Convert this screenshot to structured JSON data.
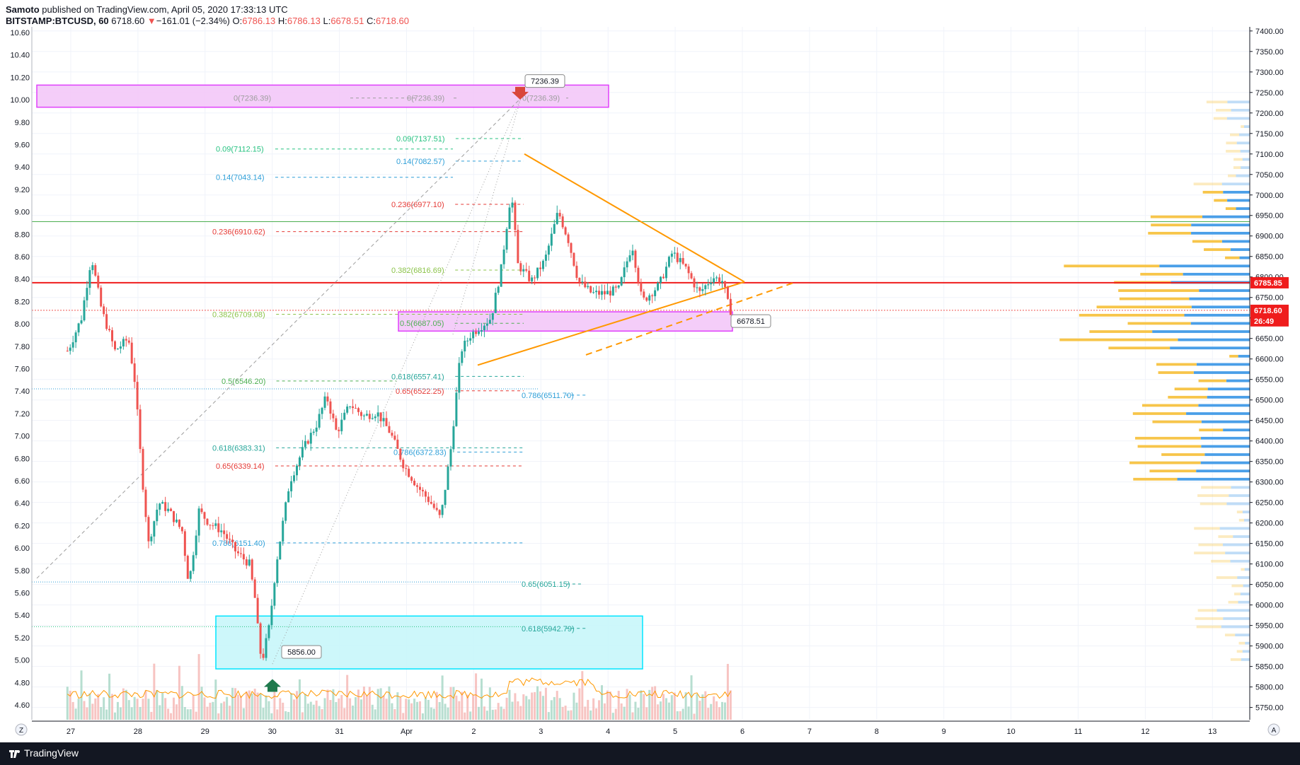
{
  "header": {
    "author": "Samoto",
    "published_text": "published on TradingView.com, April 05, 2020 17:33:13 UTC",
    "symbol": "BITSTAMP:BTCUSD, 60",
    "last": "6718.60",
    "change_arrow": "▼",
    "change": "−161.01 (−2.34%)",
    "o_label": "O:",
    "o_val": "6786.13",
    "h_label": "H:",
    "h_val": "6786.13",
    "l_label": "L:",
    "l_val": "6678.51",
    "c_label": "C:",
    "c_val": "6718.60"
  },
  "footer": {
    "brand": "TradingView"
  },
  "axis_buttons": {
    "left": "Z",
    "right": "A"
  },
  "colors": {
    "up": "#26a69a",
    "down": "#ef5350",
    "fib_green": "#4caf50",
    "fib_blue": "#2196f3",
    "fib_red": "#e53935",
    "fib_lime": "#8bc34a",
    "triangle": "#ff9800",
    "zone_pink": "#e040fb",
    "zone_cyan": "#00e5ff",
    "vp_yellow": "#f7c54a",
    "vp_blue": "#4a9fe8"
  },
  "chart_data": {
    "type": "candlestick",
    "x_ticks": [
      "27",
      "28",
      "29",
      "30",
      "31",
      "Apr",
      "2",
      "3",
      "4",
      "5",
      "6",
      "7",
      "8",
      "9",
      "10",
      "11",
      "12",
      "13"
    ],
    "right_axis_ticks": [
      "7400.00",
      "7350.00",
      "7300.00",
      "7250.00",
      "7200.00",
      "7150.00",
      "7100.00",
      "7050.00",
      "7000.00",
      "6950.00",
      "6900.00",
      "6850.00",
      "6800.00",
      "6750.00",
      "6700.00",
      "6650.00",
      "6600.00",
      "6550.00",
      "6500.00",
      "6450.00",
      "6400.00",
      "6350.00",
      "6300.00",
      "6250.00",
      "6200.00",
      "6150.00",
      "6100.00",
      "6050.00",
      "6000.00",
      "5950.00",
      "5900.00",
      "5850.00",
      "5800.00",
      "5750.00"
    ],
    "left_axis_ticks": [
      "10.60",
      "10.40",
      "10.20",
      "10.00",
      "9.80",
      "9.60",
      "9.40",
      "9.20",
      "9.00",
      "8.80",
      "8.60",
      "8.40",
      "8.20",
      "8.00",
      "7.80",
      "7.60",
      "7.40",
      "7.20",
      "7.00",
      "6.80",
      "6.60",
      "6.40",
      "6.20",
      "6.00",
      "5.80",
      "5.60",
      "5.40",
      "5.20",
      "5.00",
      "4.80",
      "4.60"
    ],
    "y_range": [
      5720,
      7410
    ],
    "price_labels": [
      {
        "text": "6785.85",
        "price": 6785.85,
        "color": "#ef1c1c"
      },
      {
        "text": "6718.60",
        "price": 6718.6,
        "color": "#ef1c1c"
      },
      {
        "text": "26:49",
        "price": 6693,
        "color": "#ef1c1c"
      }
    ],
    "callouts": [
      {
        "text": "7236.39",
        "price": 7236.39
      },
      {
        "text": "6678.51",
        "price": 6678.51
      },
      {
        "text": "5856.00",
        "price": 5856.0
      }
    ],
    "fib_levels": [
      {
        "text": "0(7236.39)",
        "price": 7236.39,
        "color": "#9e9e9e"
      },
      {
        "text": "0(7236.39)",
        "price": 7236.39,
        "color": "#9e9e9e"
      },
      {
        "text": "0(7236.39)",
        "price": 7236.39,
        "color": "#9e9e9e"
      },
      {
        "text": "0.09(7137.51)",
        "price": 7137.51,
        "color": "#26c281"
      },
      {
        "text": "0.09(7112.15)",
        "price": 7112.15,
        "color": "#26c281"
      },
      {
        "text": "0.14(7082.57)",
        "price": 7082.57,
        "color": "#2e9fd8"
      },
      {
        "text": "0.14(7043.14)",
        "price": 7043.14,
        "color": "#2e9fd8"
      },
      {
        "text": "0.236(6977.10)",
        "price": 6977.1,
        "color": "#e53935"
      },
      {
        "text": "0.236(6910.62)",
        "price": 6910.62,
        "color": "#e53935"
      },
      {
        "text": "0.382(6816.69)",
        "price": 6816.69,
        "color": "#8bc34a"
      },
      {
        "text": "0.382(6709.08)",
        "price": 6709.08,
        "color": "#8bc34a"
      },
      {
        "text": "0.5(6687.05)",
        "price": 6687.05,
        "color": "#4caf50"
      },
      {
        "text": "0.618(6557.41)",
        "price": 6557.41,
        "color": "#26a69a"
      },
      {
        "text": "0.5(6546.20)",
        "price": 6546.2,
        "color": "#4caf50"
      },
      {
        "text": "0.65(6522.25)",
        "price": 6522.25,
        "color": "#e53935"
      },
      {
        "text": "0.786(6511.70)",
        "price": 6511.7,
        "color": "#2e9fd8"
      },
      {
        "text": "0.618(6383.31)",
        "price": 6383.31,
        "color": "#26a69a"
      },
      {
        "text": "0.786(6372.83)",
        "price": 6372.83,
        "color": "#2e9fd8"
      },
      {
        "text": "0.65(6339.14)",
        "price": 6339.14,
        "color": "#e53935"
      },
      {
        "text": "0.786(6151.40)",
        "price": 6151.4,
        "color": "#2e9fd8"
      },
      {
        "text": "0.65(6051.15)",
        "price": 6051.15,
        "color": "#26a69a"
      },
      {
        "text": "0.618(5942.79)",
        "price": 5942.79,
        "color": "#26a69a"
      }
    ],
    "price_path": [
      [
        27,
        6620
      ],
      [
        27.2,
        6700
      ],
      [
        27.35,
        6850
      ],
      [
        27.5,
        6720
      ],
      [
        27.7,
        6620
      ],
      [
        27.9,
        6650
      ],
      [
        28.0,
        6540
      ],
      [
        28.1,
        6320
      ],
      [
        28.2,
        6150
      ],
      [
        28.35,
        6250
      ],
      [
        28.5,
        6230
      ],
      [
        28.7,
        6180
      ],
      [
        28.8,
        6050
      ],
      [
        28.95,
        6230
      ],
      [
        29.1,
        6200
      ],
      [
        29.3,
        6180
      ],
      [
        29.5,
        6130
      ],
      [
        29.7,
        6100
      ],
      [
        29.8,
        6000
      ],
      [
        29.85,
        5890
      ],
      [
        29.9,
        5870
      ],
      [
        30.0,
        5950
      ],
      [
        30.1,
        6100
      ],
      [
        30.3,
        6300
      ],
      [
        30.5,
        6380
      ],
      [
        30.7,
        6440
      ],
      [
        30.85,
        6510
      ],
      [
        31.0,
        6420
      ],
      [
        31.2,
        6490
      ],
      [
        31.4,
        6460
      ],
      [
        31.6,
        6470
      ],
      [
        31.8,
        6420
      ],
      [
        32.0,
        6340
      ],
      [
        32.2,
        6290
      ],
      [
        32.4,
        6250
      ],
      [
        32.55,
        6210
      ],
      [
        32.7,
        6380
      ],
      [
        32.85,
        6620
      ],
      [
        33.0,
        6660
      ],
      [
        33.3,
        6700
      ],
      [
        33.45,
        6820
      ],
      [
        33.6,
        7010
      ],
      [
        33.7,
        6830
      ],
      [
        33.9,
        6790
      ],
      [
        34.1,
        6840
      ],
      [
        34.3,
        6960
      ],
      [
        34.45,
        6890
      ],
      [
        34.6,
        6790
      ],
      [
        34.8,
        6760
      ],
      [
        35.0,
        6760
      ],
      [
        35.2,
        6770
      ],
      [
        35.4,
        6880
      ],
      [
        35.55,
        6740
      ],
      [
        35.8,
        6780
      ],
      [
        36.0,
        6860
      ],
      [
        36.2,
        6820
      ],
      [
        36.4,
        6760
      ],
      [
        36.6,
        6800
      ],
      [
        36.75,
        6790
      ],
      [
        36.85,
        6718
      ]
    ],
    "volume_profile": {
      "type": "bar",
      "buy_color": "#4a9fe8",
      "sell_color": "#f7c54a"
    }
  }
}
